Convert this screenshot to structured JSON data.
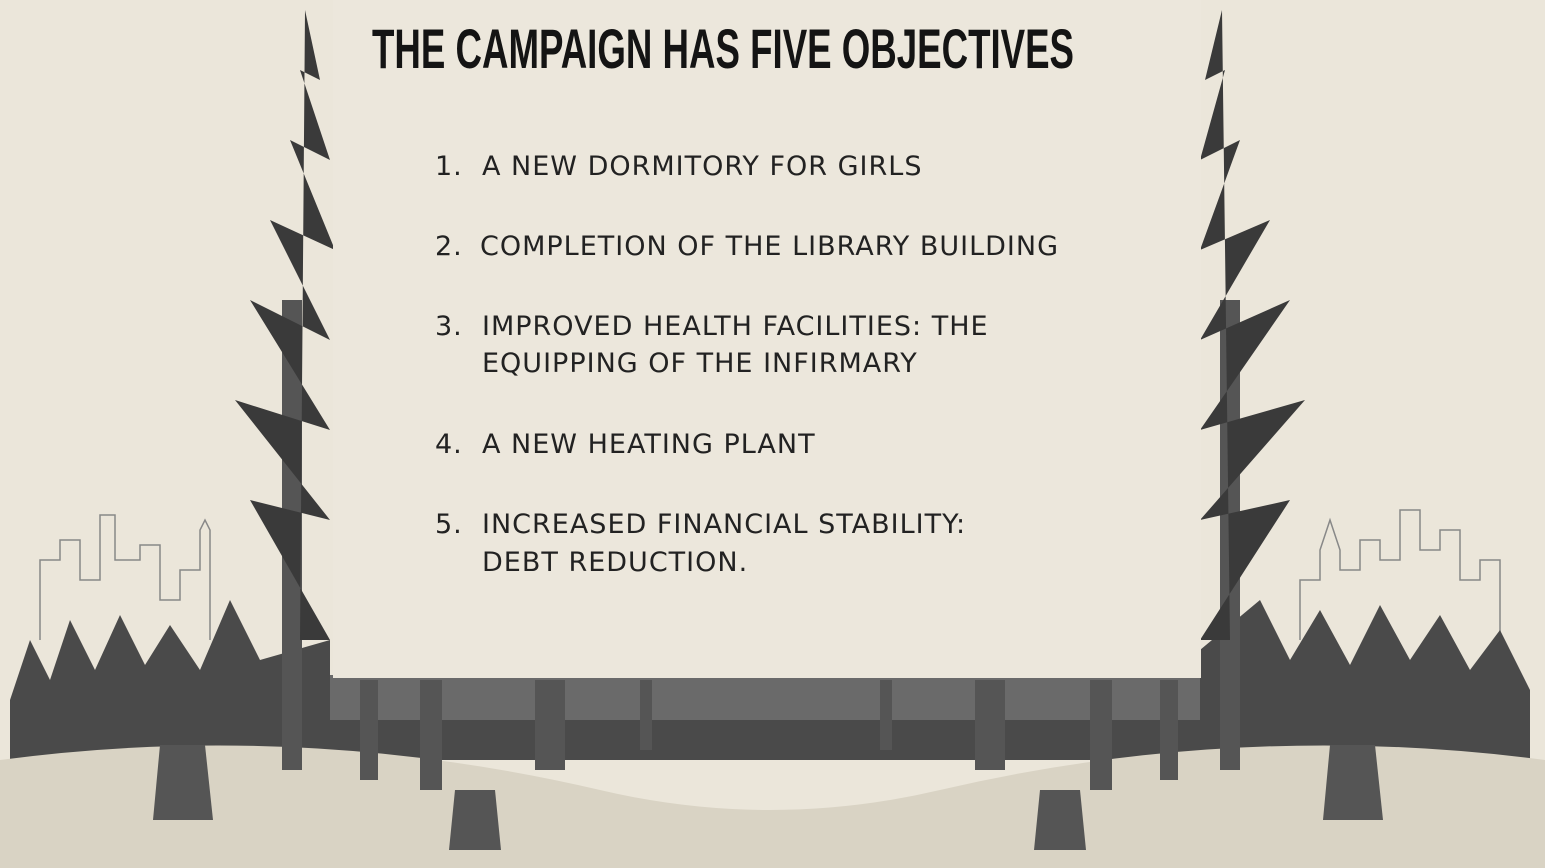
{
  "title": "THE CAMPAIGN HAS FIVE OBJECTIVES",
  "objectives": [
    {
      "number": "1.",
      "lines": [
        "A NEW DORMITORY FOR GIRLS"
      ]
    },
    {
      "number": "2.",
      "lines": [
        "COMPLETION OF THE LIBRARY BUILDING"
      ]
    },
    {
      "number": "3.",
      "lines": [
        "IMPROVED HEALTH FACILITIES: THE",
        "EQUIPPING OF THE INFIRMARY"
      ]
    },
    {
      "number": "4.",
      "lines": [
        "A NEW HEATING PLANT"
      ]
    },
    {
      "number": "5.",
      "lines": [
        "INCREASED FINANCIAL STABILITY:",
        "DEBT REDUCTION."
      ]
    }
  ]
}
